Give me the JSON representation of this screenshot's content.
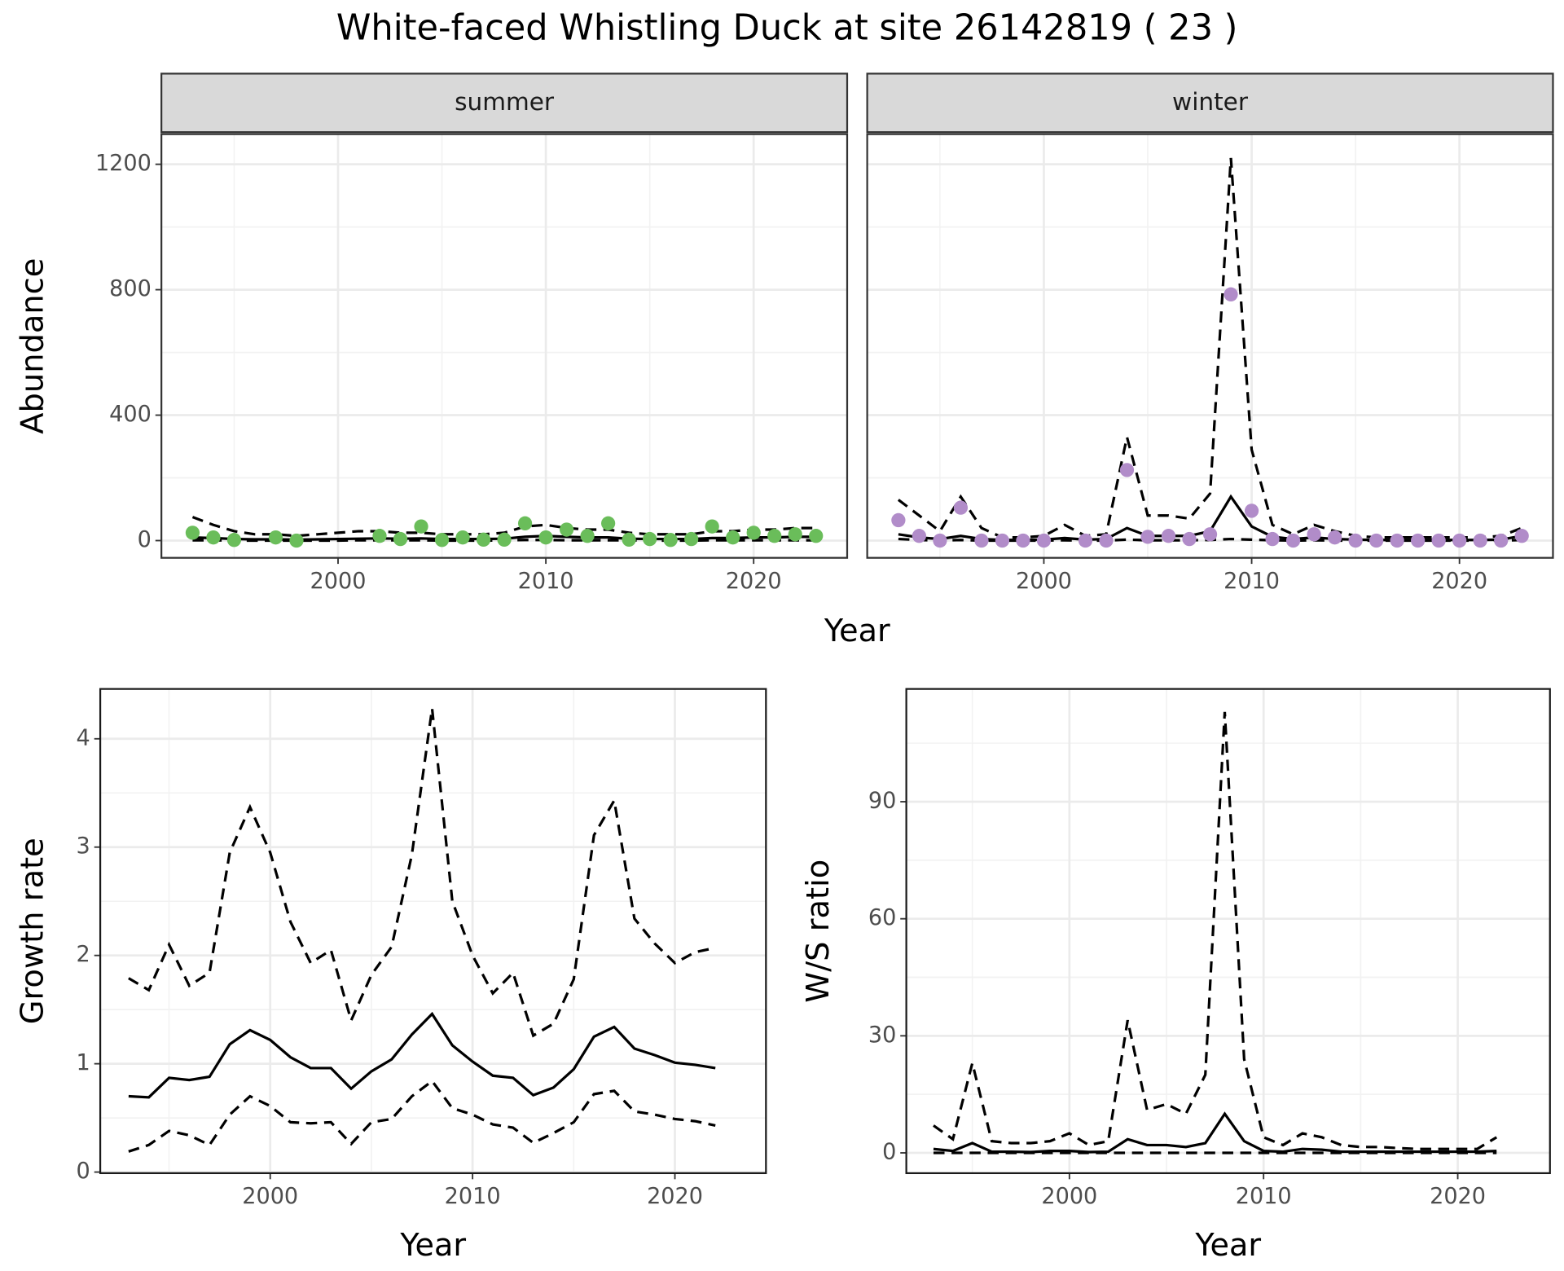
{
  "title": "White-faced Whistling Duck at site 26142819 ( 23 )",
  "chart_data": [
    {
      "type": "line",
      "xlabel": "Year",
      "ylabel": "Abundance",
      "x": [
        1993,
        1994,
        1995,
        1996,
        1997,
        1998,
        1999,
        2000,
        2001,
        2002,
        2003,
        2004,
        2005,
        2006,
        2007,
        2008,
        2009,
        2010,
        2011,
        2012,
        2013,
        2014,
        2015,
        2016,
        2017,
        2018,
        2019,
        2020,
        2021,
        2022,
        2023
      ],
      "xlim": [
        1991.5,
        2024.5
      ],
      "ylim": [
        -55,
        1296
      ],
      "xticks": [
        2000,
        2010,
        2020
      ],
      "yticks": [
        0,
        400,
        800,
        1200
      ],
      "grid": true,
      "facets": [
        {
          "label": "summer",
          "points": {
            "color": "#6abd5a",
            "values": [
              25,
              10,
              2,
              null,
              10,
              0,
              null,
              null,
              null,
              15,
              5,
              45,
              2,
              10,
              3,
              3,
              55,
              10,
              35,
              15,
              55,
              3,
              5,
              2,
              5,
              45,
              10,
              25,
              15,
              20,
              15
            ]
          },
          "series": [
            {
              "color": "#000000",
              "dash": false,
              "values": [
                10,
                8,
                5,
                4,
                4,
                3,
                4,
                5,
                6,
                7,
                6,
                7,
                5,
                5,
                5,
                6,
                12,
                15,
                12,
                10,
                10,
                6,
                5,
                5,
                5,
                8,
                8,
                10,
                10,
                12,
                12
              ]
            },
            {
              "color": "#000000",
              "dash": true,
              "values": [
                75,
                50,
                30,
                20,
                20,
                15,
                20,
                25,
                30,
                30,
                25,
                25,
                20,
                20,
                20,
                25,
                45,
                50,
                40,
                35,
                35,
                25,
                20,
                20,
                20,
                30,
                30,
                35,
                35,
                40,
                40
              ]
            },
            {
              "color": "#000000",
              "dash": true,
              "values": [
                1,
                1,
                0,
                0,
                0,
                0,
                0,
                0,
                1,
                1,
                1,
                1,
                0,
                0,
                0,
                1,
                2,
                2,
                1,
                1,
                1,
                1,
                0,
                0,
                0,
                1,
                1,
                1,
                1,
                1,
                1
              ]
            }
          ]
        },
        {
          "label": "winter",
          "points": {
            "color": "#b18cc9",
            "values": [
              65,
              15,
              0,
              105,
              0,
              0,
              0,
              0,
              null,
              0,
              0,
              225,
              12,
              15,
              5,
              20,
              785,
              95,
              5,
              0,
              20,
              10,
              0,
              0,
              0,
              0,
              0,
              0,
              0,
              0,
              15
            ]
          },
          "series": [
            {
              "color": "#000000",
              "dash": false,
              "values": [
                20,
                10,
                5,
                15,
                5,
                2,
                2,
                3,
                8,
                3,
                5,
                40,
                15,
                15,
                15,
                30,
                140,
                45,
                12,
                5,
                10,
                5,
                3,
                2,
                2,
                2,
                2,
                2,
                2,
                3,
                15
              ]
            },
            {
              "color": "#000000",
              "dash": true,
              "values": [
                130,
                80,
                30,
                140,
                40,
                10,
                10,
                15,
                50,
                15,
                20,
                330,
                80,
                80,
                70,
                150,
                1220,
                290,
                50,
                20,
                50,
                30,
                15,
                10,
                10,
                10,
                10,
                10,
                10,
                15,
                40
              ]
            },
            {
              "color": "#000000",
              "dash": true,
              "values": [
                5,
                2,
                0,
                2,
                0,
                0,
                0,
                0,
                1,
                0,
                0,
                3,
                1,
                1,
                1,
                2,
                5,
                3,
                1,
                0,
                1,
                0,
                0,
                0,
                0,
                0,
                0,
                0,
                0,
                0,
                2
              ]
            }
          ]
        }
      ]
    },
    {
      "type": "line",
      "xlabel": "Year",
      "ylabel": "Growth rate",
      "x": [
        1993,
        1994,
        1995,
        1996,
        1997,
        1998,
        1999,
        2000,
        2001,
        2002,
        2003,
        2004,
        2005,
        2006,
        2007,
        2008,
        2009,
        2010,
        2011,
        2012,
        2013,
        2014,
        2015,
        2016,
        2017,
        2018,
        2019,
        2020,
        2021,
        2022
      ],
      "xlim": [
        1991.6,
        2024.5
      ],
      "ylim": [
        -0.01,
        4.46
      ],
      "xticks": [
        2000,
        2010,
        2020
      ],
      "yticks": [
        0,
        1,
        2,
        3,
        4
      ],
      "grid": true,
      "series": [
        {
          "color": "#000000",
          "dash": false,
          "values": [
            0.7,
            0.69,
            0.87,
            0.85,
            0.88,
            1.18,
            1.31,
            1.22,
            1.06,
            0.96,
            0.96,
            0.77,
            0.93,
            1.04,
            1.27,
            1.46,
            1.17,
            1.02,
            0.89,
            0.87,
            0.71,
            0.78,
            0.95,
            1.25,
            1.34,
            1.14,
            1.08,
            1.01,
            0.99,
            0.96
          ]
        },
        {
          "color": "#000000",
          "dash": true,
          "values": [
            1.79,
            1.68,
            2.1,
            1.72,
            1.84,
            2.95,
            3.37,
            2.95,
            2.31,
            1.93,
            2.05,
            1.4,
            1.82,
            2.08,
            2.93,
            4.28,
            2.5,
            2.0,
            1.65,
            1.84,
            1.26,
            1.37,
            1.78,
            3.11,
            3.43,
            2.34,
            2.11,
            1.93,
            2.03,
            2.07
          ]
        },
        {
          "color": "#000000",
          "dash": true,
          "values": [
            0.19,
            0.25,
            0.38,
            0.34,
            0.25,
            0.53,
            0.7,
            0.61,
            0.46,
            0.45,
            0.46,
            0.26,
            0.46,
            0.49,
            0.7,
            0.84,
            0.59,
            0.53,
            0.44,
            0.41,
            0.27,
            0.36,
            0.46,
            0.72,
            0.75,
            0.56,
            0.53,
            0.49,
            0.47,
            0.43
          ]
        }
      ]
    },
    {
      "type": "line",
      "xlabel": "Year",
      "ylabel": "W/S ratio",
      "x": [
        1993,
        1994,
        1995,
        1996,
        1997,
        1998,
        1999,
        2000,
        2001,
        2002,
        2003,
        2004,
        2005,
        2006,
        2007,
        2008,
        2009,
        2010,
        2011,
        2012,
        2013,
        2014,
        2015,
        2016,
        2017,
        2018,
        2019,
        2020,
        2021,
        2022
      ],
      "xlim": [
        1991.6,
        2024.75
      ],
      "ylim": [
        -5.2,
        118.9
      ],
      "xticks": [
        2000,
        2010,
        2020
      ],
      "yticks": [
        0,
        30,
        60,
        90
      ],
      "grid": true,
      "series": [
        {
          "color": "#000000",
          "dash": false,
          "values": [
            1,
            0.5,
            2.5,
            0.3,
            0.3,
            0.2,
            0.5,
            0.5,
            0.2,
            0.3,
            3.5,
            2,
            2,
            1.5,
            2.5,
            10,
            3,
            0.5,
            0.3,
            1,
            0.8,
            0.3,
            0.3,
            0.3,
            0.3,
            0.3,
            0.3,
            0.3,
            0.3,
            0.5
          ]
        },
        {
          "color": "#000000",
          "dash": true,
          "values": [
            7,
            3.5,
            23,
            3,
            2.5,
            2.5,
            3,
            5,
            2,
            3,
            34,
            11,
            12.5,
            10,
            20,
            113,
            24,
            4,
            2,
            5,
            4,
            2,
            1.5,
            1.5,
            1.2,
            1,
            1,
            1,
            1,
            4
          ]
        },
        {
          "color": "#000000",
          "dash": true,
          "values": [
            0,
            0,
            0,
            0,
            0,
            0,
            0,
            0,
            0,
            0,
            0,
            0,
            0,
            0,
            0,
            0,
            0,
            0,
            0,
            0,
            0,
            0,
            0,
            0,
            0,
            0,
            0,
            0,
            0,
            0
          ]
        }
      ]
    }
  ]
}
